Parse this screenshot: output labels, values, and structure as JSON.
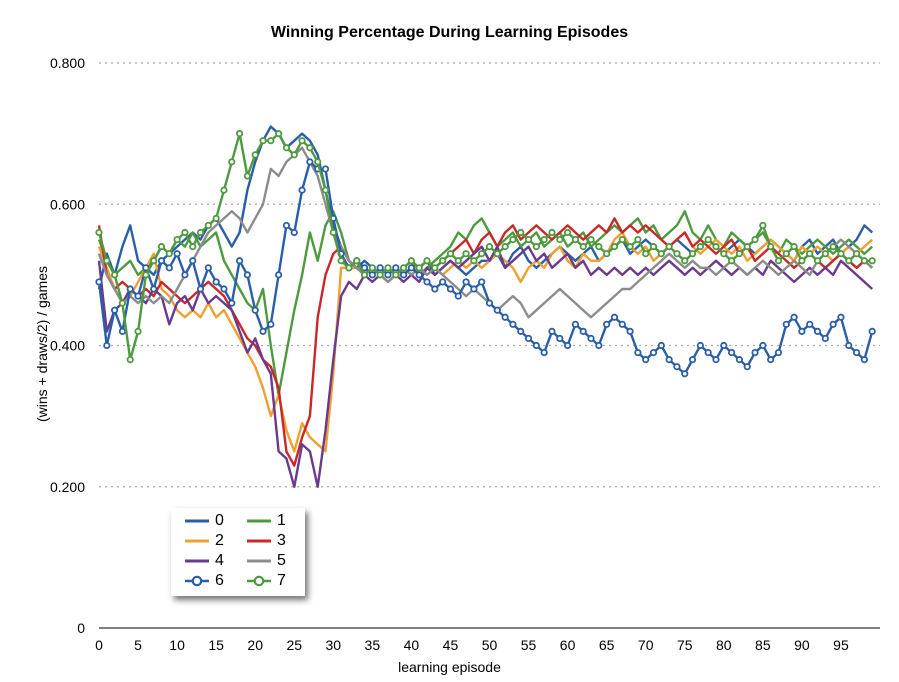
{
  "chart_data": {
    "type": "line",
    "title": "Winning Percentage During Learning Episodes",
    "xlabel": "learning episode",
    "ylabel": "(wins + draws/2) / games",
    "xlim": [
      0,
      100
    ],
    "ylim": [
      0,
      0.8
    ],
    "y_ticks": [
      "0",
      "0.200",
      "0.400",
      "0.600",
      "0.800"
    ],
    "x_ticks": [
      "0",
      "5",
      "10",
      "15",
      "20",
      "25",
      "30",
      "35",
      "40",
      "45",
      "50",
      "55",
      "60",
      "65",
      "70",
      "75",
      "80",
      "85",
      "90",
      "95"
    ],
    "grid": "horizontal dotted",
    "legend_position": "bottom-left",
    "series": [
      {
        "name": "0",
        "color": "#2a5ea8",
        "marker": "none",
        "values": [
          0.48,
          0.53,
          0.5,
          0.54,
          0.57,
          0.52,
          0.51,
          0.5,
          0.52,
          0.53,
          0.54,
          0.55,
          0.56,
          0.55,
          0.57,
          0.58,
          0.56,
          0.54,
          0.56,
          0.62,
          0.66,
          0.69,
          0.71,
          0.7,
          0.68,
          0.69,
          0.7,
          0.69,
          0.67,
          0.62,
          0.57,
          0.54,
          0.52,
          0.51,
          0.52,
          0.51,
          0.5,
          0.51,
          0.5,
          0.51,
          0.5,
          0.51,
          0.52,
          0.5,
          0.51,
          0.52,
          0.51,
          0.5,
          0.51,
          0.52,
          0.52,
          0.53,
          0.51,
          0.53,
          0.54,
          0.52,
          0.51,
          0.52,
          0.53,
          0.54,
          0.53,
          0.52,
          0.53,
          0.54,
          0.52,
          0.53,
          0.54,
          0.55,
          0.53,
          0.54,
          0.55,
          0.54,
          0.53,
          0.54,
          0.55,
          0.54,
          0.53,
          0.54,
          0.55,
          0.54,
          0.53,
          0.54,
          0.55,
          0.54,
          0.53,
          0.54,
          0.55,
          0.54,
          0.53,
          0.52,
          0.54,
          0.55,
          0.53,
          0.54,
          0.55,
          0.53,
          0.54,
          0.55,
          0.57,
          0.56
        ]
      },
      {
        "name": "1",
        "color": "#4e9a3e",
        "marker": "none",
        "values": [
          0.55,
          0.52,
          0.5,
          0.51,
          0.52,
          0.5,
          0.51,
          0.52,
          0.54,
          0.53,
          0.55,
          0.54,
          0.56,
          0.54,
          0.55,
          0.56,
          0.52,
          0.5,
          0.48,
          0.46,
          0.45,
          0.48,
          0.4,
          0.33,
          0.39,
          0.45,
          0.5,
          0.56,
          0.52,
          0.57,
          0.59,
          0.56,
          0.52,
          0.51,
          0.5,
          0.51,
          0.5,
          0.51,
          0.5,
          0.51,
          0.52,
          0.5,
          0.51,
          0.52,
          0.53,
          0.54,
          0.56,
          0.55,
          0.57,
          0.58,
          0.56,
          0.54,
          0.55,
          0.56,
          0.54,
          0.55,
          0.56,
          0.54,
          0.55,
          0.56,
          0.54,
          0.55,
          0.56,
          0.54,
          0.55,
          0.56,
          0.57,
          0.56,
          0.57,
          0.58,
          0.56,
          0.57,
          0.55,
          0.56,
          0.57,
          0.59,
          0.56,
          0.55,
          0.57,
          0.55,
          0.54,
          0.56,
          0.55,
          0.54,
          0.55,
          0.56,
          0.54,
          0.53,
          0.55,
          0.54,
          0.53,
          0.54,
          0.55,
          0.54,
          0.53,
          0.54,
          0.55,
          0.54,
          0.53,
          0.54
        ]
      },
      {
        "name": "2",
        "color": "#f0a030",
        "marker": "none",
        "values": [
          0.54,
          0.51,
          0.48,
          0.46,
          0.47,
          0.49,
          0.51,
          0.53,
          0.48,
          0.47,
          0.45,
          0.44,
          0.45,
          0.44,
          0.46,
          0.44,
          0.45,
          0.43,
          0.41,
          0.39,
          0.37,
          0.34,
          0.3,
          0.33,
          0.28,
          0.25,
          0.29,
          0.27,
          0.26,
          0.25,
          0.36,
          0.51,
          0.51,
          0.51,
          0.5,
          0.51,
          0.5,
          0.51,
          0.5,
          0.5,
          0.51,
          0.51,
          0.5,
          0.51,
          0.5,
          0.51,
          0.52,
          0.51,
          0.52,
          0.51,
          0.52,
          0.53,
          0.52,
          0.51,
          0.49,
          0.51,
          0.52,
          0.51,
          0.53,
          0.54,
          0.52,
          0.51,
          0.53,
          0.52,
          0.52,
          0.53,
          0.55,
          0.56,
          0.54,
          0.53,
          0.54,
          0.52,
          0.53,
          0.54,
          0.55,
          0.56,
          0.54,
          0.53,
          0.54,
          0.55,
          0.54,
          0.53,
          0.54,
          0.52,
          0.53,
          0.54,
          0.55,
          0.54,
          0.53,
          0.52,
          0.54,
          0.53,
          0.54,
          0.53,
          0.52,
          0.53,
          0.54,
          0.53,
          0.54,
          0.55
        ]
      },
      {
        "name": "3",
        "color": "#c82828",
        "marker": "none",
        "values": [
          0.57,
          0.5,
          0.48,
          0.49,
          0.48,
          0.47,
          0.48,
          0.47,
          0.49,
          0.48,
          0.47,
          0.46,
          0.47,
          0.48,
          0.49,
          0.48,
          0.47,
          0.45,
          0.43,
          0.41,
          0.4,
          0.38,
          0.37,
          0.34,
          0.25,
          0.23,
          0.27,
          0.3,
          0.44,
          0.5,
          0.53,
          0.54,
          0.52,
          0.51,
          0.5,
          0.51,
          0.5,
          0.51,
          0.5,
          0.51,
          0.5,
          0.51,
          0.52,
          0.51,
          0.52,
          0.53,
          0.54,
          0.55,
          0.53,
          0.55,
          0.56,
          0.54,
          0.56,
          0.57,
          0.55,
          0.56,
          0.57,
          0.56,
          0.55,
          0.56,
          0.57,
          0.56,
          0.55,
          0.56,
          0.57,
          0.56,
          0.58,
          0.56,
          0.57,
          0.56,
          0.57,
          0.56,
          0.55,
          0.54,
          0.55,
          0.56,
          0.54,
          0.55,
          0.54,
          0.53,
          0.54,
          0.55,
          0.53,
          0.54,
          0.52,
          0.53,
          0.54,
          0.53,
          0.52,
          0.51,
          0.52,
          0.53,
          0.52,
          0.51,
          0.52,
          0.53,
          0.52,
          0.51,
          0.52,
          0.51
        ]
      },
      {
        "name": "4",
        "color": "#6a3a8e",
        "marker": "none",
        "values": [
          0.52,
          0.42,
          0.45,
          0.46,
          0.48,
          0.47,
          0.46,
          0.48,
          0.47,
          0.43,
          0.46,
          0.47,
          0.45,
          0.48,
          0.46,
          0.47,
          0.46,
          0.45,
          0.42,
          0.39,
          0.41,
          0.38,
          0.36,
          0.25,
          0.24,
          0.2,
          0.26,
          0.25,
          0.2,
          0.28,
          0.38,
          0.47,
          0.49,
          0.48,
          0.5,
          0.49,
          0.5,
          0.49,
          0.5,
          0.49,
          0.5,
          0.49,
          0.51,
          0.5,
          0.51,
          0.52,
          0.51,
          0.52,
          0.53,
          0.54,
          0.52,
          0.54,
          0.51,
          0.52,
          0.53,
          0.54,
          0.52,
          0.53,
          0.51,
          0.52,
          0.53,
          0.51,
          0.52,
          0.5,
          0.51,
          0.5,
          0.51,
          0.5,
          0.51,
          0.5,
          0.51,
          0.5,
          0.51,
          0.52,
          0.51,
          0.5,
          0.51,
          0.5,
          0.51,
          0.52,
          0.51,
          0.5,
          0.51,
          0.5,
          0.51,
          0.5,
          0.52,
          0.51,
          0.5,
          0.49,
          0.5,
          0.51,
          0.5,
          0.51,
          0.5,
          0.52,
          0.51,
          0.5,
          0.49,
          0.48
        ]
      },
      {
        "name": "5",
        "color": "#8c8c8c",
        "marker": "none",
        "values": [
          0.53,
          0.5,
          0.48,
          0.46,
          0.47,
          0.46,
          0.47,
          0.46,
          0.47,
          0.46,
          0.48,
          0.5,
          0.52,
          0.54,
          0.56,
          0.57,
          0.58,
          0.59,
          0.58,
          0.56,
          0.58,
          0.6,
          0.65,
          0.64,
          0.66,
          0.67,
          0.68,
          0.66,
          0.64,
          0.6,
          0.56,
          0.54,
          0.52,
          0.51,
          0.5,
          0.51,
          0.5,
          0.49,
          0.5,
          0.51,
          0.5,
          0.51,
          0.5,
          0.51,
          0.5,
          0.49,
          0.48,
          0.47,
          0.48,
          0.47,
          0.46,
          0.45,
          0.46,
          0.47,
          0.46,
          0.44,
          0.45,
          0.46,
          0.47,
          0.48,
          0.47,
          0.46,
          0.45,
          0.44,
          0.45,
          0.46,
          0.47,
          0.48,
          0.48,
          0.49,
          0.5,
          0.51,
          0.52,
          0.53,
          0.52,
          0.51,
          0.52,
          0.51,
          0.51,
          0.5,
          0.51,
          0.52,
          0.51,
          0.5,
          0.51,
          0.52,
          0.51,
          0.5,
          0.51,
          0.52,
          0.51,
          0.5,
          0.52,
          0.53,
          0.54,
          0.55,
          0.54,
          0.53,
          0.52,
          0.51
        ]
      },
      {
        "name": "6",
        "color": "#2a5ea8",
        "marker": "circle",
        "values": [
          0.49,
          0.4,
          0.45,
          0.42,
          0.48,
          0.47,
          0.51,
          0.48,
          0.52,
          0.51,
          0.53,
          0.5,
          0.52,
          0.48,
          0.51,
          0.49,
          0.48,
          0.46,
          0.52,
          0.5,
          0.45,
          0.42,
          0.43,
          0.5,
          0.57,
          0.56,
          0.62,
          0.66,
          0.65,
          0.65,
          0.58,
          0.53,
          0.51,
          0.52,
          0.51,
          0.5,
          0.51,
          0.5,
          0.51,
          0.5,
          0.51,
          0.5,
          0.49,
          0.48,
          0.49,
          0.48,
          0.47,
          0.49,
          0.48,
          0.49,
          0.46,
          0.45,
          0.44,
          0.43,
          0.42,
          0.41,
          0.4,
          0.39,
          0.42,
          0.41,
          0.4,
          0.43,
          0.42,
          0.41,
          0.4,
          0.43,
          0.44,
          0.43,
          0.42,
          0.39,
          0.38,
          0.39,
          0.4,
          0.38,
          0.37,
          0.36,
          0.38,
          0.4,
          0.39,
          0.38,
          0.4,
          0.39,
          0.38,
          0.37,
          0.39,
          0.4,
          0.38,
          0.39,
          0.43,
          0.44,
          0.42,
          0.43,
          0.42,
          0.41,
          0.43,
          0.44,
          0.4,
          0.39,
          0.38,
          0.42
        ]
      },
      {
        "name": "7",
        "color": "#4e9a3e",
        "marker": "circle",
        "values": [
          0.56,
          0.52,
          0.5,
          0.46,
          0.38,
          0.42,
          0.5,
          0.52,
          0.54,
          0.53,
          0.55,
          0.56,
          0.54,
          0.56,
          0.57,
          0.58,
          0.62,
          0.66,
          0.7,
          0.64,
          0.67,
          0.69,
          0.69,
          0.7,
          0.68,
          0.67,
          0.69,
          0.68,
          0.66,
          0.62,
          0.56,
          0.52,
          0.51,
          0.52,
          0.5,
          0.51,
          0.5,
          0.51,
          0.5,
          0.51,
          0.52,
          0.51,
          0.52,
          0.51,
          0.52,
          0.53,
          0.52,
          0.53,
          0.52,
          0.53,
          0.54,
          0.53,
          0.54,
          0.55,
          0.56,
          0.55,
          0.54,
          0.55,
          0.56,
          0.55,
          0.56,
          0.55,
          0.54,
          0.55,
          0.54,
          0.53,
          0.54,
          0.55,
          0.54,
          0.55,
          0.53,
          0.54,
          0.53,
          0.54,
          0.53,
          0.52,
          0.53,
          0.54,
          0.55,
          0.54,
          0.53,
          0.52,
          0.53,
          0.54,
          0.55,
          0.57,
          0.54,
          0.52,
          0.53,
          0.54,
          0.52,
          0.53,
          0.52,
          0.53,
          0.54,
          0.53,
          0.52,
          0.53,
          0.52,
          0.52
        ]
      }
    ]
  }
}
